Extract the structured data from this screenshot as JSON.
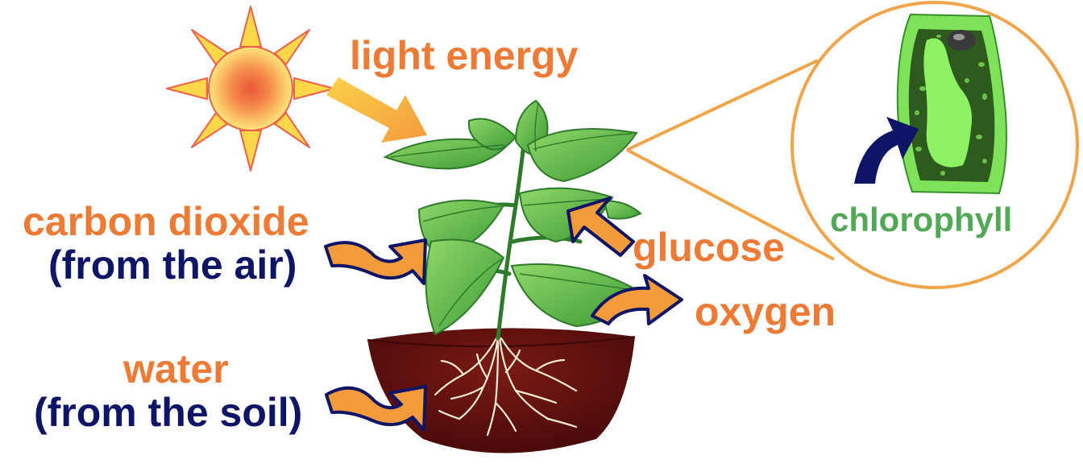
{
  "labels": {
    "light_energy": "light energy",
    "carbon_dioxide": "carbon dioxide",
    "from_air": "(from the air)",
    "water": "water",
    "from_soil": "(from the soil)",
    "glucose": "glucose",
    "oxygen": "oxygen",
    "chlorophyll": "chlorophyll"
  },
  "colors": {
    "label_orange": "#ee7b35",
    "label_navy": "#0e1566",
    "label_green": "#53a857",
    "arrow_fill": "#f39a3a",
    "arrow_outline": "#0e1566",
    "sun_ray": "#ffd84a",
    "soil": "#5c0f0f",
    "leaf": "#6cc24a",
    "magnifier_ring": "#f0a54a"
  }
}
